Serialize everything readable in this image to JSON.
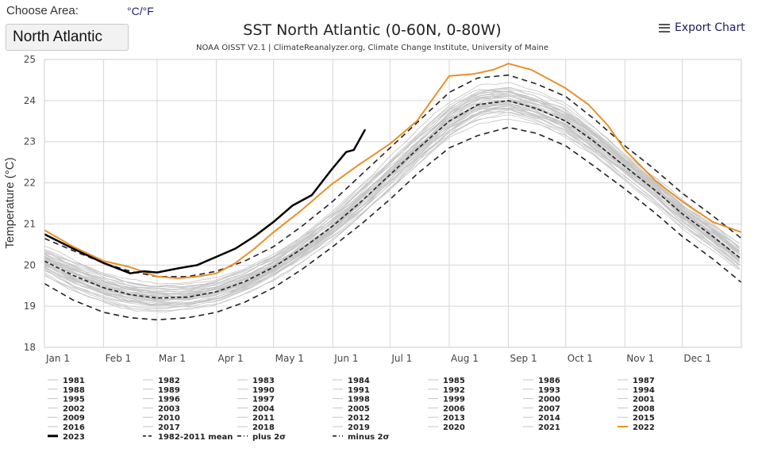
{
  "controls": {
    "choose_area_label": "Choose Area:",
    "unit_toggle": "°C/°F",
    "area_value": "North Atlantic",
    "export_label": "Export Chart",
    "export_icon": "hamburger-menu-icon"
  },
  "colors": {
    "year_2023": "#000000",
    "year_2022": "#e8902a",
    "other_years": "#c4c4c4",
    "mean": "#222222",
    "sigma": "#222222"
  },
  "chart_data": {
    "type": "line",
    "title": "SST North Atlantic (0-60N, 0-80W)",
    "subtitle": "NOAA OISST V2.1 | ClimateReanalyzer.org, Climate Change Institute, University of Maine",
    "xlabel": "",
    "ylabel": "Temperature (°C)",
    "ylim": [
      18,
      25
    ],
    "yticks": [
      18,
      19,
      20,
      21,
      22,
      23,
      24,
      25
    ],
    "xlim_day_of_year": [
      0,
      365
    ],
    "xticks": [
      {
        "label": "Jan 1",
        "day": 0
      },
      {
        "label": "Feb 1",
        "day": 31
      },
      {
        "label": "Mar 1",
        "day": 59
      },
      {
        "label": "Apr 1",
        "day": 90
      },
      {
        "label": "May 1",
        "day": 120
      },
      {
        "label": "Jun 1",
        "day": 151
      },
      {
        "label": "Jul 1",
        "day": 181
      },
      {
        "label": "Aug 1",
        "day": 212
      },
      {
        "label": "Sep 1",
        "day": 243
      },
      {
        "label": "Oct 1",
        "day": 273
      },
      {
        "label": "Nov 1",
        "day": 304
      },
      {
        "label": "Dec 1",
        "day": 334
      }
    ],
    "grid": true,
    "legend_position": "bottom",
    "series": [
      {
        "name": "2023",
        "style": "solid-bold",
        "x": [
          0,
          15,
          31,
          45,
          52,
          59,
          70,
          80,
          90,
          100,
          110,
          120,
          130,
          140,
          150,
          158,
          162,
          168
        ],
        "y": [
          20.75,
          20.4,
          20.05,
          19.8,
          19.85,
          19.82,
          19.92,
          20.0,
          20.2,
          20.4,
          20.7,
          21.05,
          21.45,
          21.7,
          22.3,
          22.75,
          22.8,
          23.3
        ]
      },
      {
        "name": "2022",
        "style": "solid-orange",
        "x": [
          0,
          15,
          31,
          45,
          59,
          70,
          80,
          90,
          100,
          110,
          120,
          135,
          150,
          165,
          181,
          195,
          212,
          225,
          235,
          243,
          255,
          265,
          273,
          285,
          295,
          304,
          320,
          334,
          350,
          365
        ],
        "y": [
          20.85,
          20.45,
          20.1,
          19.95,
          19.72,
          19.68,
          19.72,
          19.8,
          20.05,
          20.4,
          20.8,
          21.35,
          21.95,
          22.45,
          22.95,
          23.5,
          24.6,
          24.65,
          24.75,
          24.9,
          24.75,
          24.5,
          24.3,
          23.9,
          23.4,
          22.8,
          22.05,
          21.55,
          21.05,
          20.8
        ]
      },
      {
        "name": "1982-2011 mean",
        "style": "dashed",
        "x": [
          0,
          15,
          31,
          45,
          59,
          75,
          90,
          105,
          120,
          135,
          151,
          166,
          181,
          196,
          212,
          227,
          243,
          258,
          273,
          288,
          304,
          319,
          334,
          350,
          365
        ],
        "y": [
          20.1,
          19.75,
          19.45,
          19.28,
          19.2,
          19.22,
          19.35,
          19.6,
          19.95,
          20.4,
          20.95,
          21.55,
          22.2,
          22.85,
          23.5,
          23.9,
          24.0,
          23.8,
          23.5,
          23.0,
          22.4,
          21.85,
          21.25,
          20.7,
          20.15
        ]
      },
      {
        "name": "plus 2σ",
        "style": "dash-dot",
        "x": [
          0,
          15,
          31,
          45,
          59,
          75,
          90,
          105,
          120,
          135,
          151,
          166,
          181,
          196,
          212,
          227,
          243,
          258,
          273,
          288,
          304,
          319,
          334,
          350,
          365
        ],
        "y": [
          20.65,
          20.35,
          20.05,
          19.85,
          19.72,
          19.72,
          19.85,
          20.1,
          20.45,
          20.95,
          21.55,
          22.2,
          22.85,
          23.5,
          24.2,
          24.55,
          24.62,
          24.4,
          24.1,
          23.55,
          22.9,
          22.35,
          21.75,
          21.2,
          20.65
        ]
      },
      {
        "name": "minus 2σ",
        "style": "dash-dot",
        "x": [
          0,
          15,
          31,
          45,
          59,
          75,
          90,
          105,
          120,
          135,
          151,
          166,
          181,
          196,
          212,
          227,
          243,
          258,
          273,
          288,
          304,
          319,
          334,
          350,
          365
        ],
        "y": [
          19.55,
          19.15,
          18.85,
          18.72,
          18.67,
          18.72,
          18.85,
          19.1,
          19.45,
          19.9,
          20.45,
          21.0,
          21.6,
          22.25,
          22.85,
          23.15,
          23.35,
          23.2,
          22.9,
          22.4,
          21.85,
          21.3,
          20.7,
          20.15,
          19.58
        ]
      }
    ],
    "background_years": [
      "1981",
      "1982",
      "1983",
      "1984",
      "1985",
      "1986",
      "1987",
      "1988",
      "1989",
      "1990",
      "1991",
      "1992",
      "1993",
      "1994",
      "1995",
      "1996",
      "1997",
      "1998",
      "1999",
      "2000",
      "2001",
      "2002",
      "2003",
      "2004",
      "2005",
      "2006",
      "2007",
      "2008",
      "2009",
      "2010",
      "2011",
      "2012",
      "2013",
      "2014",
      "2015",
      "2016",
      "2017",
      "2018",
      "2019",
      "2020",
      "2021"
    ],
    "background_years_range": "spread between minus 2σ and plus 2σ around the mean",
    "legend": [
      "1981",
      "1982",
      "1983",
      "1984",
      "1985",
      "1986",
      "1987",
      "1988",
      "1989",
      "1990",
      "1991",
      "1992",
      "1993",
      "1994",
      "1995",
      "1996",
      "1997",
      "1998",
      "1999",
      "2000",
      "2001",
      "2002",
      "2003",
      "2004",
      "2005",
      "2006",
      "2007",
      "2008",
      "2009",
      "2010",
      "2011",
      "2012",
      "2013",
      "2014",
      "2015",
      "2016",
      "2017",
      "2018",
      "2019",
      "2020",
      "2021",
      "2022",
      "2023",
      "1982-2011 mean",
      "plus 2σ",
      "minus 2σ"
    ]
  }
}
